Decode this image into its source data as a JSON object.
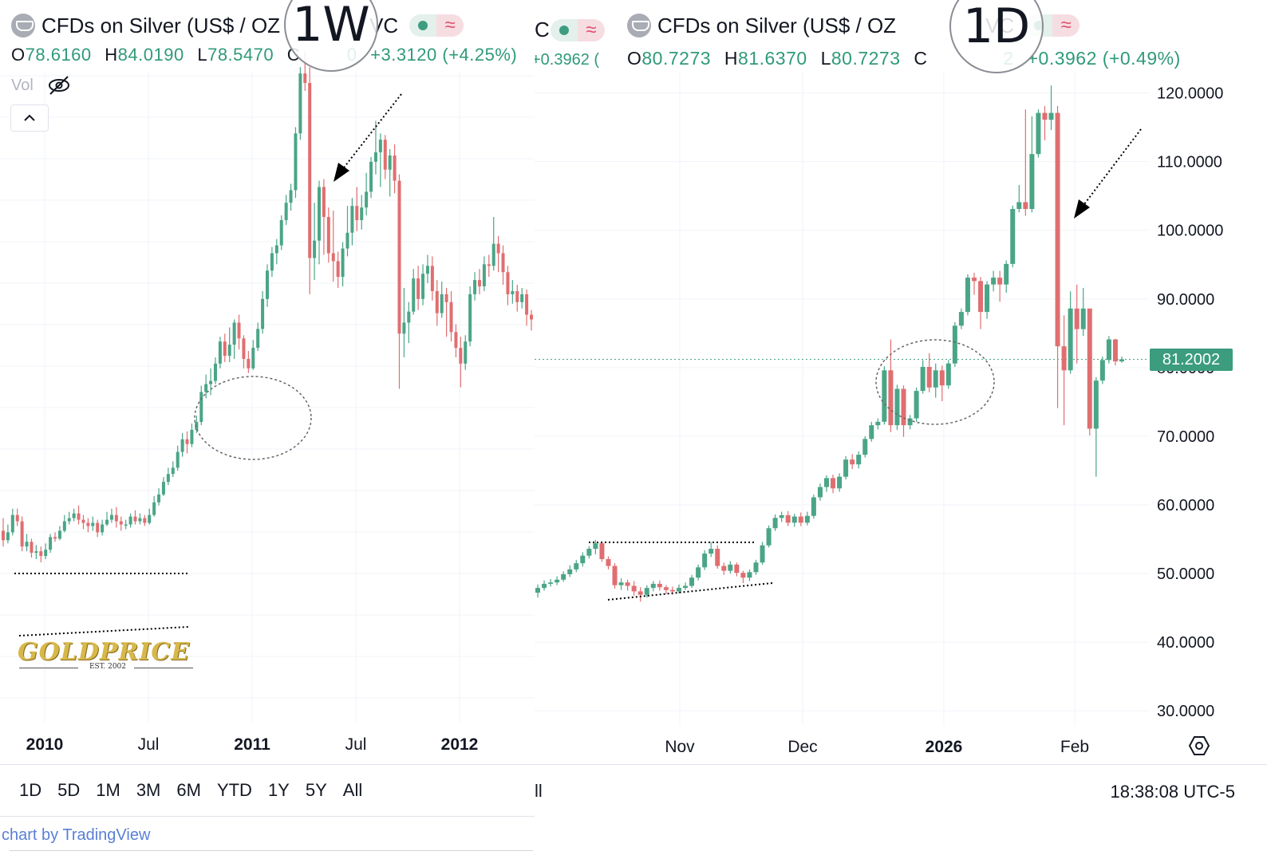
{
  "left": {
    "title": "CFDs on Silver (US$ / OZ",
    "title_suffix": "VC",
    "timeframe": "1W",
    "ohlc": {
      "o_label": "O",
      "o": "78.6160",
      "h_label": "H",
      "h": "84.0190",
      "l_label": "L",
      "l": "78.5470",
      "c_label": "C",
      "c": "0",
      "change": "+3.3120 (+4.25%)"
    },
    "vol_label": "Vol",
    "range_buttons": [
      "1D",
      "5D",
      "1M",
      "3M",
      "6M",
      "YTD",
      "1Y",
      "5Y",
      "All"
    ],
    "credit": "chart by TradingView",
    "logo_text": "GOLDPRICE",
    "logo_sub": "EST. 2002"
  },
  "right": {
    "title": "CFDs on Silver (US$ / OZ",
    "title_suffix": "VC",
    "timeframe": "1D",
    "prefix_partial": "C",
    "partial_change": "+0.3962 (",
    "ohlc": {
      "o_label": "O",
      "o": "80.7273",
      "h_label": "H",
      "h": "81.6370",
      "l_label": "L",
      "l": "80.7273",
      "c_label": "C",
      "c": "2",
      "change": "+0.3962 (+0.49%)"
    },
    "current_price": "81.2002",
    "footer_left": "ll",
    "time": "18:38:08 UTC-5"
  },
  "chart_data": [
    {
      "type": "candlestick",
      "title": "CFDs on Silver (US$ / OZ)",
      "interval": "1W",
      "x_tick_labels": [
        "2010",
        "Jul",
        "2011",
        "Jul",
        "2012"
      ],
      "y_range_approx": [
        14,
        48
      ],
      "candles_ohlc": [
        [
          17.6,
          17.0,
          18.4,
          16.6
        ],
        [
          17.0,
          17.5,
          18.0,
          16.8
        ],
        [
          17.5,
          18.6,
          19.0,
          17.3
        ],
        [
          18.6,
          18.2,
          19.0,
          17.9
        ],
        [
          18.2,
          16.6,
          18.5,
          16.3
        ],
        [
          16.6,
          16.9,
          17.4,
          16.3
        ],
        [
          16.9,
          16.2,
          17.1,
          15.9
        ],
        [
          16.2,
          16.3,
          16.7,
          15.8
        ],
        [
          16.3,
          16.0,
          16.6,
          15.6
        ],
        [
          16.0,
          16.4,
          16.8,
          15.8
        ],
        [
          16.4,
          17.2,
          17.4,
          16.2
        ],
        [
          17.2,
          17.1,
          17.5,
          16.9
        ],
        [
          17.1,
          17.6,
          17.9,
          17.0
        ],
        [
          17.6,
          18.2,
          18.6,
          17.5
        ],
        [
          18.2,
          18.4,
          18.8,
          18.0
        ],
        [
          18.4,
          18.7,
          19.0,
          18.2
        ],
        [
          18.7,
          18.3,
          19.2,
          18.0
        ],
        [
          18.3,
          18.1,
          18.6,
          17.7
        ],
        [
          18.1,
          17.9,
          18.4,
          17.5
        ],
        [
          17.9,
          18.1,
          18.5,
          17.6
        ],
        [
          18.1,
          17.5,
          18.3,
          17.2
        ],
        [
          17.5,
          18.0,
          18.3,
          17.3
        ],
        [
          18.0,
          18.3,
          18.8,
          17.9
        ],
        [
          18.3,
          18.6,
          19.0,
          18.1
        ],
        [
          18.6,
          18.2,
          19.1,
          17.8
        ],
        [
          18.2,
          18.0,
          18.5,
          17.6
        ],
        [
          18.0,
          18.0,
          18.3,
          17.7
        ],
        [
          18.0,
          18.5,
          18.7,
          17.8
        ],
        [
          18.5,
          18.2,
          18.9,
          18.0
        ],
        [
          18.2,
          18.4,
          18.7,
          18.0
        ],
        [
          18.4,
          18.1,
          18.6,
          17.9
        ],
        [
          18.1,
          18.6,
          19.0,
          18.0
        ],
        [
          18.6,
          19.4,
          19.8,
          18.5
        ],
        [
          19.4,
          19.9,
          20.3,
          19.2
        ],
        [
          19.9,
          20.7,
          21.0,
          19.8
        ],
        [
          20.7,
          21.2,
          21.6,
          20.5
        ],
        [
          21.2,
          21.6,
          22.0,
          21.0
        ],
        [
          21.6,
          22.6,
          23.0,
          21.4
        ],
        [
          22.6,
          23.4,
          23.8,
          22.3
        ],
        [
          23.4,
          23.1,
          23.9,
          22.5
        ],
        [
          23.1,
          24.0,
          24.4,
          22.9
        ],
        [
          24.0,
          24.5,
          24.9,
          23.8
        ],
        [
          24.5,
          26.4,
          26.8,
          24.3
        ],
        [
          26.4,
          26.9,
          27.5,
          26.0
        ],
        [
          26.9,
          27.1,
          27.9,
          26.2
        ],
        [
          27.1,
          28.2,
          28.6,
          26.9
        ],
        [
          28.2,
          29.6,
          29.9,
          27.9
        ],
        [
          29.6,
          28.7,
          30.1,
          28.3
        ],
        [
          28.7,
          29.4,
          30.5,
          28.3
        ],
        [
          29.4,
          30.8,
          31.0,
          28.5
        ],
        [
          30.8,
          29.8,
          31.3,
          29.1
        ],
        [
          29.8,
          28.5,
          30.0,
          27.9
        ],
        [
          28.5,
          27.9,
          29.0,
          27.6
        ],
        [
          27.9,
          29.2,
          29.7,
          27.8
        ],
        [
          29.2,
          30.4,
          30.8,
          29.0
        ],
        [
          30.4,
          32.3,
          32.8,
          30.1
        ],
        [
          32.3,
          34.1,
          34.5,
          31.8
        ],
        [
          34.1,
          35.2,
          35.6,
          33.7
        ],
        [
          35.2,
          35.7,
          36.1,
          34.5
        ],
        [
          35.7,
          37.3,
          37.6,
          35.4
        ],
        [
          37.3,
          38.4,
          38.9,
          37.0
        ],
        [
          38.4,
          39.2,
          39.6,
          37.9
        ],
        [
          39.2,
          42.8,
          43.2,
          38.7
        ],
        [
          42.8,
          46.6,
          47.0,
          42.4
        ],
        [
          46.6,
          46.0,
          48.0,
          45.5
        ],
        [
          46.0,
          34.9,
          47.0,
          32.6
        ],
        [
          34.9,
          36.0,
          38.4,
          33.5
        ],
        [
          36.0,
          39.4,
          39.8,
          34.5
        ],
        [
          39.4,
          37.5,
          39.9,
          35.1
        ],
        [
          37.5,
          35.2,
          38.1,
          34.6
        ],
        [
          35.2,
          34.7,
          37.9,
          33.4
        ],
        [
          34.7,
          33.7,
          35.3,
          33.0
        ],
        [
          33.7,
          35.5,
          35.9,
          33.1
        ],
        [
          35.5,
          36.5,
          38.2,
          35.0
        ],
        [
          36.5,
          38.2,
          38.7,
          35.7
        ],
        [
          38.2,
          37.3,
          39.4,
          36.6
        ],
        [
          37.3,
          38.1,
          38.9,
          36.7
        ],
        [
          38.1,
          39.1,
          40.3,
          37.6
        ],
        [
          39.1,
          41.0,
          41.3,
          38.7
        ],
        [
          41.0,
          41.6,
          43.6,
          40.2
        ],
        [
          41.6,
          42.4,
          42.8,
          39.4
        ],
        [
          42.4,
          40.5,
          42.7,
          39.9
        ],
        [
          40.5,
          41.4,
          41.8,
          38.8
        ],
        [
          41.4,
          39.8,
          42.1,
          39.0
        ],
        [
          39.8,
          30.1,
          40.2,
          26.6
        ],
        [
          30.1,
          30.8,
          33.0,
          28.6
        ],
        [
          30.8,
          31.5,
          32.1,
          29.5
        ],
        [
          31.5,
          33.6,
          34.2,
          31.3
        ],
        [
          33.6,
          32.3,
          34.4,
          31.6
        ],
        [
          32.3,
          33.9,
          34.5,
          31.9
        ],
        [
          33.9,
          34.4,
          35.1,
          33.3
        ],
        [
          34.4,
          32.8,
          35.0,
          32.2
        ],
        [
          32.8,
          31.4,
          33.5,
          30.6
        ],
        [
          31.4,
          32.6,
          33.4,
          31.1
        ],
        [
          32.6,
          32.1,
          33.0,
          29.9
        ],
        [
          32.1,
          30.2,
          32.8,
          29.6
        ],
        [
          30.2,
          29.2,
          30.7,
          28.6
        ],
        [
          29.2,
          28.2,
          29.9,
          26.7
        ],
        [
          28.2,
          29.6,
          30.0,
          27.8
        ],
        [
          29.6,
          32.6,
          33.1,
          29.3
        ],
        [
          32.6,
          33.5,
          34.0,
          32.2
        ],
        [
          33.5,
          33.1,
          34.2,
          32.6
        ],
        [
          33.1,
          34.5,
          35.0,
          32.8
        ],
        [
          34.5,
          34.4,
          35.1,
          33.7
        ],
        [
          34.4,
          35.8,
          37.5,
          34.1
        ],
        [
          35.8,
          35.2,
          36.3,
          34.0
        ],
        [
          35.2,
          34.0,
          35.7,
          33.2
        ],
        [
          34.0,
          32.6,
          34.4,
          31.9
        ],
        [
          32.6,
          32.8,
          33.5,
          32.0
        ],
        [
          32.8,
          32.1,
          33.2,
          31.5
        ],
        [
          32.1,
          32.6,
          33.0,
          31.7
        ],
        [
          32.6,
          31.3,
          32.9,
          30.6
        ],
        [
          31.3,
          31.0,
          31.6,
          30.3
        ]
      ]
    },
    {
      "type": "candlestick",
      "title": "CFDs on Silver (US$ / OZ)",
      "interval": "1D",
      "x_tick_labels": [
        "Nov",
        "Dec",
        "2026",
        "Feb"
      ],
      "y_ticks": [
        "30.0000",
        "40.0000",
        "50.0000",
        "60.0000",
        "70.0000",
        "80.0000",
        "90.0000",
        "100.0000",
        "110.0000",
        "120.0000"
      ],
      "ylim": [
        27,
        121
      ],
      "current_price": 81.2002,
      "candles_ohlc": [
        [
          47.2,
          47.9,
          48.4,
          46.5
        ],
        [
          47.9,
          48.5,
          49.0,
          47.5
        ],
        [
          48.5,
          48.7,
          49.2,
          48.1
        ],
        [
          48.7,
          49.1,
          49.6,
          48.3
        ],
        [
          49.1,
          49.9,
          50.3,
          48.8
        ],
        [
          49.9,
          50.6,
          51.2,
          49.5
        ],
        [
          50.6,
          51.5,
          52.0,
          50.2
        ],
        [
          51.5,
          52.6,
          53.1,
          51.0
        ],
        [
          52.6,
          53.6,
          54.0,
          52.2
        ],
        [
          53.6,
          54.4,
          54.9,
          52.8
        ],
        [
          54.4,
          52.1,
          54.6,
          51.7
        ],
        [
          52.1,
          51.1,
          52.5,
          50.6
        ],
        [
          51.1,
          48.3,
          51.5,
          47.8
        ],
        [
          48.3,
          48.7,
          49.3,
          47.6
        ],
        [
          48.7,
          48.2,
          49.1,
          47.5
        ],
        [
          48.2,
          47.4,
          48.9,
          46.8
        ],
        [
          47.4,
          46.9,
          48.0,
          45.9
        ],
        [
          46.9,
          47.9,
          48.3,
          46.5
        ],
        [
          47.9,
          48.5,
          48.9,
          47.4
        ],
        [
          48.5,
          48.0,
          49.0,
          47.5
        ],
        [
          48.0,
          47.6,
          48.3,
          47.0
        ],
        [
          47.6,
          47.4,
          48.1,
          46.9
        ],
        [
          47.4,
          47.9,
          48.4,
          47.1
        ],
        [
          47.9,
          48.2,
          48.7,
          47.6
        ],
        [
          48.2,
          49.4,
          49.8,
          47.9
        ],
        [
          49.4,
          50.9,
          51.3,
          49.0
        ],
        [
          50.9,
          52.9,
          53.4,
          50.5
        ],
        [
          52.9,
          53.6,
          54.6,
          52.4
        ],
        [
          53.6,
          51.1,
          54.1,
          50.7
        ],
        [
          51.1,
          50.4,
          51.6,
          49.8
        ],
        [
          50.4,
          51.3,
          51.8,
          50.0
        ],
        [
          51.3,
          50.1,
          51.6,
          49.6
        ],
        [
          50.1,
          49.4,
          50.4,
          48.6
        ],
        [
          49.4,
          50.2,
          50.6,
          48.9
        ],
        [
          50.2,
          51.6,
          52.0,
          49.8
        ],
        [
          51.6,
          54.1,
          54.6,
          51.3
        ],
        [
          54.1,
          56.6,
          57.0,
          53.8
        ],
        [
          56.6,
          58.1,
          58.6,
          56.2
        ],
        [
          58.1,
          58.5,
          59.0,
          57.5
        ],
        [
          58.5,
          57.4,
          59.1,
          56.9
        ],
        [
          57.4,
          58.3,
          58.7,
          56.8
        ],
        [
          58.3,
          57.4,
          58.9,
          56.9
        ],
        [
          57.4,
          58.4,
          59.0,
          57.0
        ],
        [
          58.4,
          61.1,
          61.5,
          58.0
        ],
        [
          61.1,
          62.6,
          63.1,
          60.6
        ],
        [
          62.6,
          63.9,
          64.3,
          61.9
        ],
        [
          63.9,
          62.4,
          64.4,
          61.7
        ],
        [
          62.4,
          64.1,
          64.6,
          61.9
        ],
        [
          64.1,
          66.6,
          67.1,
          63.7
        ],
        [
          66.6,
          65.9,
          67.4,
          65.2
        ],
        [
          65.9,
          67.3,
          67.8,
          65.3
        ],
        [
          67.3,
          69.6,
          70.0,
          66.9
        ],
        [
          69.6,
          71.6,
          72.1,
          69.2
        ],
        [
          71.6,
          72.1,
          72.6,
          71.0
        ],
        [
          72.1,
          79.6,
          80.2,
          71.7
        ],
        [
          79.6,
          71.6,
          84.1,
          70.6
        ],
        [
          71.6,
          76.9,
          77.5,
          70.9
        ],
        [
          76.9,
          71.6,
          77.4,
          69.9
        ],
        [
          71.6,
          72.6,
          73.1,
          71.0
        ],
        [
          72.6,
          76.6,
          77.1,
          72.1
        ],
        [
          76.6,
          80.1,
          81.1,
          76.2
        ],
        [
          80.1,
          77.1,
          82.1,
          76.4
        ],
        [
          77.1,
          79.6,
          80.6,
          75.6
        ],
        [
          79.6,
          77.4,
          80.3,
          75.1
        ],
        [
          77.4,
          80.6,
          81.1,
          76.9
        ],
        [
          80.6,
          86.1,
          86.6,
          80.1
        ],
        [
          86.1,
          88.1,
          88.6,
          85.6
        ],
        [
          88.1,
          93.1,
          93.6,
          87.6
        ],
        [
          93.1,
          92.6,
          93.8,
          90.6
        ],
        [
          92.6,
          88.1,
          93.2,
          85.6
        ],
        [
          88.1,
          92.1,
          92.6,
          87.1
        ],
        [
          92.1,
          93.1,
          94.1,
          91.1
        ],
        [
          93.1,
          92.1,
          94.1,
          89.6
        ],
        [
          92.1,
          95.1,
          95.6,
          90.9
        ],
        [
          95.1,
          103.1,
          103.6,
          94.6
        ],
        [
          103.1,
          104.1,
          106.6,
          102.6
        ],
        [
          104.1,
          103.1,
          117.6,
          102.1
        ],
        [
          103.1,
          111.1,
          116.6,
          102.6
        ],
        [
          111.1,
          117.1,
          117.6,
          110.6
        ],
        [
          117.1,
          116.1,
          118.1,
          113.1
        ],
        [
          116.1,
          117.1,
          121.1,
          114.6
        ],
        [
          117.1,
          83.1,
          118.1,
          74.1
        ],
        [
          83.1,
          79.6,
          87.6,
          71.6
        ],
        [
          79.6,
          88.6,
          91.1,
          79.1
        ],
        [
          88.6,
          85.6,
          92.1,
          80.6
        ],
        [
          85.6,
          88.6,
          91.6,
          84.6
        ],
        [
          88.6,
          71.1,
          88.6,
          70.1
        ],
        [
          71.1,
          78.1,
          78.6,
          64.1
        ],
        [
          78.1,
          81.1,
          81.6,
          77.6
        ],
        [
          81.1,
          84.1,
          84.6,
          80.6
        ],
        [
          84.1,
          80.9,
          84.2,
          80.3
        ],
        [
          80.9,
          81.2,
          81.6,
          80.7
        ]
      ]
    }
  ]
}
